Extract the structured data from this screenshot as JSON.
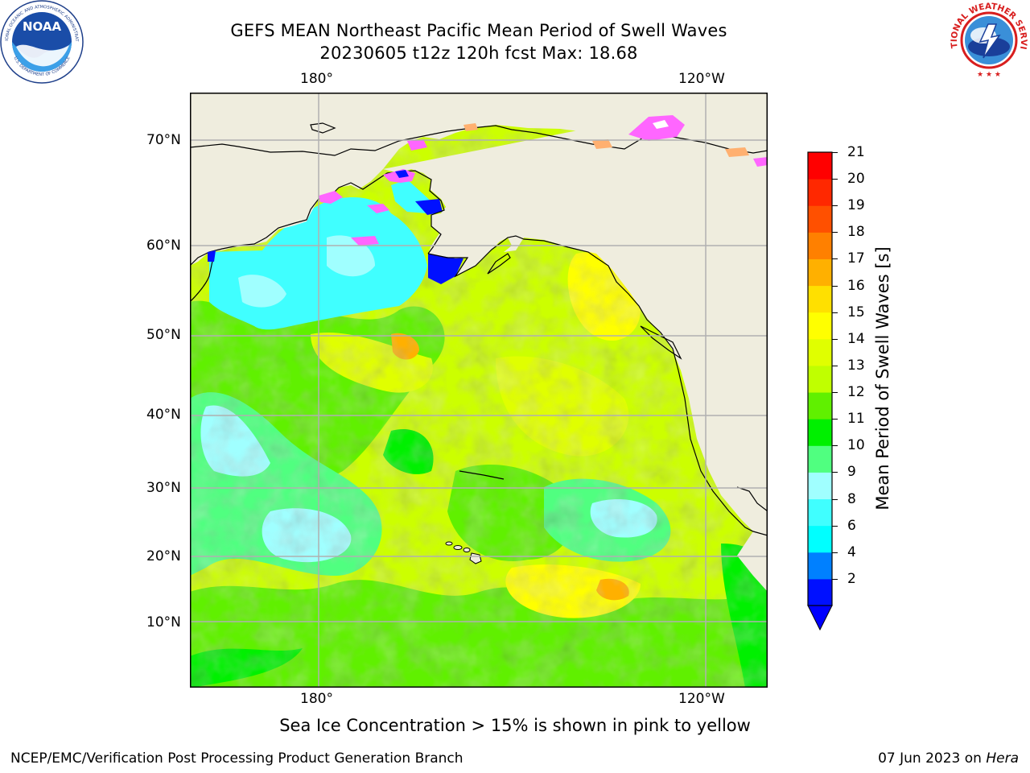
{
  "header": {
    "title_line1": "GEFS MEAN Northeast Pacific Mean Period of Swell Waves",
    "title_line2": "20230605 t12z 120h fcst   Max: 18.68"
  },
  "map": {
    "lon_ticks_top": [
      "180°",
      "120°W"
    ],
    "lon_ticks_bottom": [
      "180°",
      "120°W"
    ],
    "lat_ticks": [
      "70°N",
      "60°N",
      "50°N",
      "40°N",
      "30°N",
      "20°N",
      "10°N"
    ],
    "colors": {
      "land": "#efedde",
      "grid": "#b0b0b0",
      "ice_pink": "#ff66ff",
      "ice_orange": "#ffb070"
    }
  },
  "colorbar": {
    "label": "Mean Period of Swell Waves [s]",
    "tick_labels": [
      "21",
      "20",
      "19",
      "18",
      "17",
      "16",
      "15",
      "14",
      "13",
      "12",
      "11",
      "10",
      "9",
      "8",
      "6",
      "4",
      "2"
    ],
    "levels": [
      2,
      4,
      6,
      8,
      9,
      10,
      11,
      12,
      13,
      14,
      15,
      16,
      17,
      18,
      19,
      20,
      21
    ],
    "colors": [
      "#0010ff",
      "#0080ff",
      "#00ffff",
      "#40ffff",
      "#a0ffff",
      "#50ff80",
      "#00f000",
      "#60f000",
      "#c0ff00",
      "#e0ff00",
      "#ffff00",
      "#ffe000",
      "#ffb000",
      "#ff8000",
      "#ff5000",
      "#ff2800",
      "#ff0000"
    ],
    "under_color": "#0000ff"
  },
  "footer": {
    "ice_note": "Sea Ice Concentration > 15% is shown in pink to yellow",
    "credit": "NCEP/EMC/Verification Post Processing Product Generation Branch",
    "date_prefix": "07 Jun 2023 on ",
    "date_machine": "Hera"
  },
  "logos": {
    "noaa_text": "NOAA",
    "noaa_ring_top": "NATIONAL OCEANIC AND ATMOSPHERIC ADMINISTRATION",
    "noaa_ring_bottom": "U.S. DEPARTMENT OF COMMERCE",
    "nws_ring": "NATIONAL WEATHER SERVICE"
  }
}
